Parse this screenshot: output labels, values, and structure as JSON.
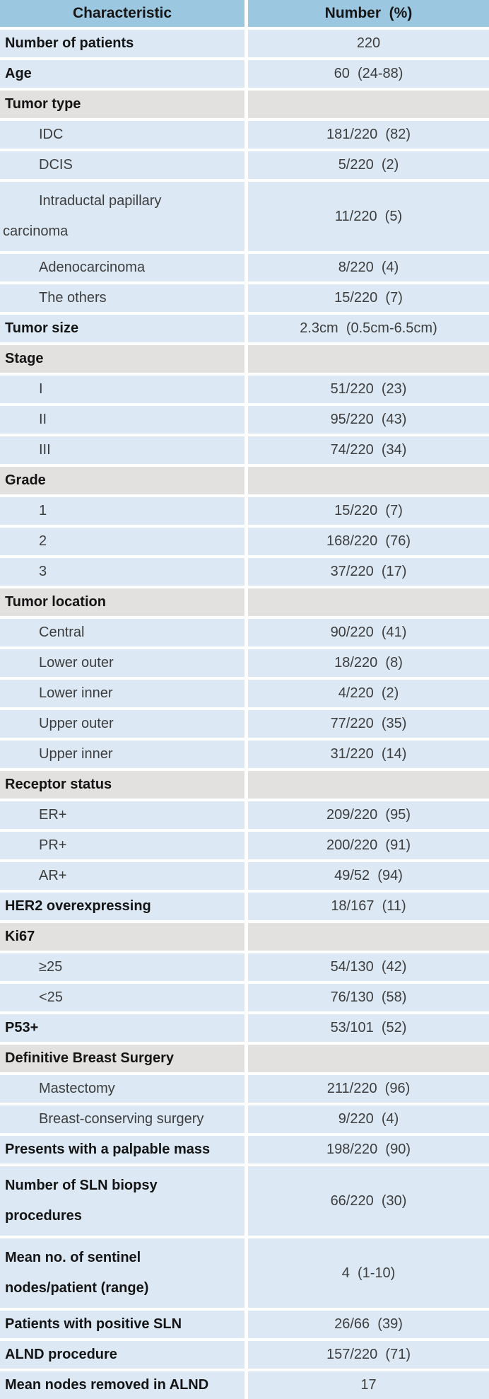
{
  "chart_data": {
    "type": "table",
    "columns": [
      "Characteristic",
      "Number  (%)"
    ],
    "colors": {
      "header_bg": "#9bc7e0",
      "row_bg": "#dce9f5",
      "section_bg": "#e3e1e0",
      "gridline": "#ffffff",
      "label_text": "#141414",
      "value_text": "#3d3d3d"
    },
    "rows": [
      {
        "label": "Number of patients",
        "value": "220",
        "type": "stat"
      },
      {
        "label": "Age",
        "value": "60  (24-88)",
        "type": "stat"
      },
      {
        "label": "Tumor type",
        "value": "",
        "type": "section"
      },
      {
        "label": "IDC",
        "value": "181/220  (82)",
        "type": "sub"
      },
      {
        "label": "DCIS",
        "value": "5/220  (2)",
        "type": "sub"
      },
      {
        "label": "Intraductal papillary\ncarcinoma",
        "value": "11/220  (5)",
        "type": "sub",
        "tall": true
      },
      {
        "label": "Adenocarcinoma",
        "value": "8/220  (4)",
        "type": "sub"
      },
      {
        "label": "The others",
        "value": "15/220  (7)",
        "type": "sub"
      },
      {
        "label": "Tumor size",
        "value": "2.3cm  (0.5cm-6.5cm)",
        "type": "stat"
      },
      {
        "label": "Stage",
        "value": "",
        "type": "section"
      },
      {
        "label": "I",
        "value": "51/220  (23)",
        "type": "sub"
      },
      {
        "label": "II",
        "value": "95/220  (43)",
        "type": "sub"
      },
      {
        "label": "III",
        "value": "74/220  (34)",
        "type": "sub"
      },
      {
        "label": "Grade",
        "value": "",
        "type": "section"
      },
      {
        "label": "1",
        "value": "15/220  (7)",
        "type": "sub"
      },
      {
        "label": "2",
        "value": "168/220  (76)",
        "type": "sub"
      },
      {
        "label": "3",
        "value": "37/220  (17)",
        "type": "sub"
      },
      {
        "label": "Tumor location",
        "value": "",
        "type": "section"
      },
      {
        "label": "Central",
        "value": "90/220  (41)",
        "type": "sub"
      },
      {
        "label": "Lower outer",
        "value": "18/220  (8)",
        "type": "sub"
      },
      {
        "label": "Lower inner",
        "value": "4/220  (2)",
        "type": "sub"
      },
      {
        "label": "Upper outer",
        "value": "77/220  (35)",
        "type": "sub"
      },
      {
        "label": "Upper inner",
        "value": "31/220  (14)",
        "type": "sub"
      },
      {
        "label": "Receptor status",
        "value": "",
        "type": "section"
      },
      {
        "label": "ER+",
        "value": "209/220  (95)",
        "type": "sub"
      },
      {
        "label": "PR+",
        "value": "200/220  (91)",
        "type": "sub"
      },
      {
        "label": "AR+",
        "value": "49/52  (94)",
        "type": "sub"
      },
      {
        "label": "HER2 overexpressing",
        "value": "18/167  (11)",
        "type": "stat"
      },
      {
        "label": "Ki67",
        "value": "",
        "type": "section"
      },
      {
        "label": "≥25",
        "value": "54/130  (42)",
        "type": "sub"
      },
      {
        "label": "<25",
        "value": "76/130  (58)",
        "type": "sub"
      },
      {
        "label": "P53+",
        "value": "53/101  (52)",
        "type": "stat"
      },
      {
        "label": "Definitive Breast Surgery",
        "value": "",
        "type": "section"
      },
      {
        "label": "Mastectomy",
        "value": "211/220  (96)",
        "type": "sub"
      },
      {
        "label": "Breast-conserving surgery",
        "value": "9/220  (4)",
        "type": "sub"
      },
      {
        "label": "Presents with a palpable mass",
        "value": "198/220  (90)",
        "type": "stat"
      },
      {
        "label": "Number of SLN biopsy\nprocedures",
        "value": "66/220  (30)",
        "type": "stat",
        "tall": true
      },
      {
        "label": "Mean no. of sentinel\nnodes/patient (range)",
        "value": "4  (1-10)",
        "type": "stat",
        "tall": true
      },
      {
        "label": "Patients with positive SLN",
        "value": "26/66  (39)",
        "type": "stat"
      },
      {
        "label": "ALND procedure",
        "value": "157/220  (71)",
        "type": "stat"
      },
      {
        "label": "Mean nodes removed in ALND",
        "value": "17",
        "type": "stat"
      }
    ]
  }
}
